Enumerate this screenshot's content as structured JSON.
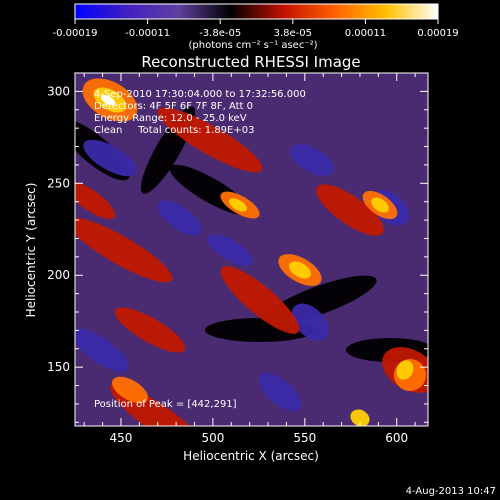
{
  "chart_data": {
    "type": "heatmap",
    "title": "Reconstructed RHESSI Image",
    "xlabel": "Heliocentric X (arcsec)",
    "ylabel": "Heliocentric Y (arcsec)",
    "xlim": [
      425,
      617
    ],
    "ylim": [
      118,
      310
    ],
    "x_ticks": [
      450,
      500,
      550,
      600
    ],
    "y_ticks": [
      150,
      200,
      250,
      300
    ],
    "colorbar": {
      "range": [
        -0.00019,
        0.00019
      ],
      "tick_labels": [
        "-0.00019",
        "-0.00011",
        "-3.8e-05",
        "3.8e-05",
        "0.00011",
        "0.00019"
      ],
      "unit_label": "(photons cm⁻² s⁻¹ asec⁻²)",
      "colors": [
        "#0000ff",
        "#4020c0",
        "#6040a0",
        "#000000",
        "#c01000",
        "#ff6000",
        "#ffc000",
        "#ffffff"
      ]
    },
    "annotations": {
      "time_range": "4-Sep-2010 17:30:04.000 to 17:32:56.000",
      "detectors": "Detectors: 4F 5F 6F 7F 8F, Att 0",
      "energy_range": "Energy Range: 12.0 - 25.0 keV",
      "method_counts": "Clean     Total counts: 1.89E+03",
      "peak": "Position of Peak = [442,291]"
    },
    "peak_position": [
      442,
      291
    ],
    "footer_date": "4-Aug-2013 10:47"
  }
}
